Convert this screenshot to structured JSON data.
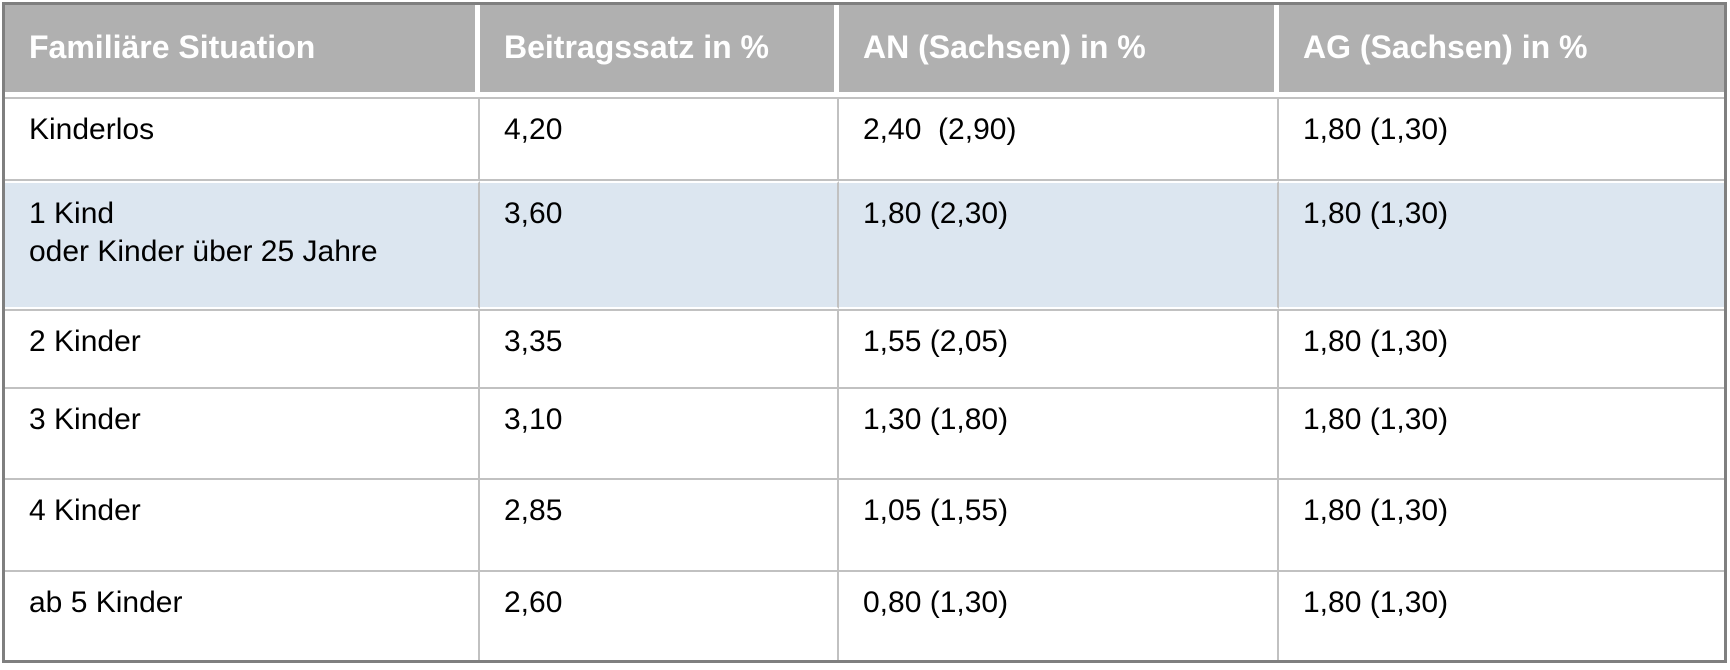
{
  "chart_data": {
    "type": "table",
    "columns": [
      "Familiäre Situation",
      "Beitragssatz in %",
      "AN (Sachsen) in %",
      "AG (Sachsen) in %"
    ],
    "rows": [
      [
        "Kinderlos",
        "4,20",
        "2,40  (2,90)",
        "1,80 (1,30)"
      ],
      [
        "1 Kind\noder Kinder über 25 Jahre",
        "3,60",
        "1,80 (2,30)",
        "1,80 (1,30)"
      ],
      [
        "2 Kinder",
        "3,35",
        "1,55 (2,05)",
        "1,80 (1,30)"
      ],
      [
        "3 Kinder",
        "3,10",
        "1,30 (1,80)",
        "1,80 (1,30)"
      ],
      [
        "4 Kinder",
        "2,85",
        "1,05 (1,55)",
        "1,80 (1,30)"
      ],
      [
        "ab 5 Kinder",
        "2,60",
        "0,80 (1,30)",
        "1,80 (1,30)"
      ]
    ],
    "highlighted_row_index": 1,
    "layout": {
      "grid": "on",
      "legend": "none"
    },
    "colors": {
      "header_bg": "#b0b0b0",
      "header_text": "#ffffff",
      "highlight_row_bg": "#dce6f0",
      "grid_line": "#c1c1c1",
      "outer_border": "#7f7f7f",
      "body_text": "#000000",
      "row_bg": "#ffffff"
    }
  }
}
